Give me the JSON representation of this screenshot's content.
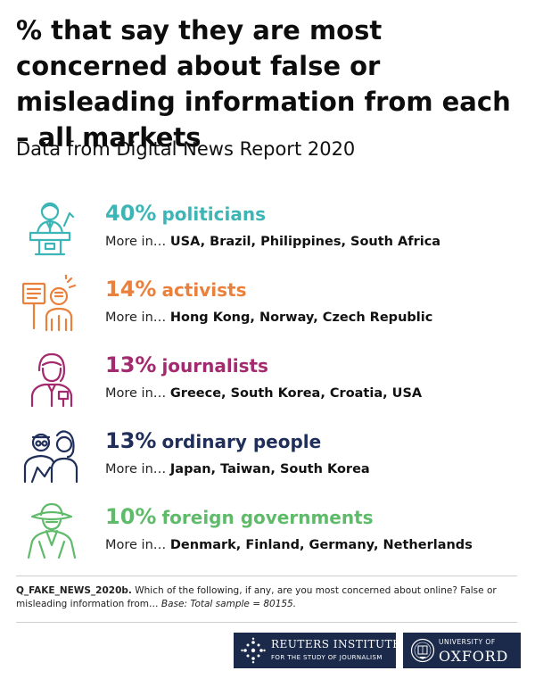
{
  "title": "% that say they are most concerned about false or misleading information from each – all markets",
  "subtitle": "Data from Digital News Report 2020",
  "chart_data": {
    "type": "table",
    "items": [
      {
        "percent": 40,
        "percent_label": "40%",
        "label": "politicians",
        "more_prefix": "More in…",
        "countries": "USA, Brazil, Philippines, South Africa",
        "color": "#3cb5b6",
        "icon": "politician-icon"
      },
      {
        "percent": 14,
        "percent_label": "14%",
        "label": "activists",
        "more_prefix": "More in…",
        "countries": "Hong Kong, Norway, Czech Republic",
        "color": "#e9803c",
        "icon": "activist-icon"
      },
      {
        "percent": 13,
        "percent_label": "13%",
        "label": "journalists",
        "more_prefix": "More in…",
        "countries": "Greece, South Korea, Croatia, USA",
        "color": "#a32a6e",
        "icon": "journalist-icon"
      },
      {
        "percent": 13,
        "percent_label": "13%",
        "label": "ordinary people",
        "more_prefix": "More in…",
        "countries": "Japan, Taiwan, South Korea",
        "color": "#1f2f5a",
        "icon": "ordinary-people-icon"
      },
      {
        "percent": 10,
        "percent_label": "10%",
        "label": "foreign governments",
        "more_prefix": "More in…",
        "countries": "Denmark, Finland, Germany, Netherlands",
        "color": "#5fbb6a",
        "icon": "foreign-government-icon"
      }
    ]
  },
  "footnote": {
    "question_id": "Q_FAKE_NEWS_2020b.",
    "question": " Which of the following, if any, are you most concerned about online? False or misleading information from… ",
    "base": "Base: Total sample = 80155."
  },
  "logos": {
    "reuters_line1": "REUTERS INSTITUTE",
    "reuters_line2": "FOR THE STUDY OF JOURNALISM",
    "oxford_line1": "UNIVERSITY OF",
    "oxford_line2": "OXFORD"
  }
}
